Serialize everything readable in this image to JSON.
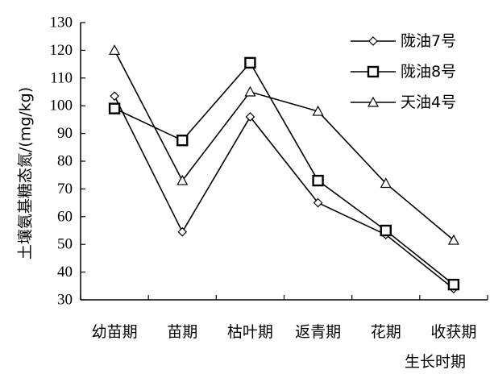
{
  "chart_data": {
    "type": "line",
    "xlabel": "生长时期",
    "ylabel": "土壤氨基糖态氮/(mg/kg)",
    "ylim": [
      30,
      130
    ],
    "yticks": [
      "30",
      "40",
      "50",
      "60",
      "70",
      "80",
      "90",
      "100",
      "110",
      "120",
      "130"
    ],
    "categories": [
      "幼苗期",
      "苗期",
      "枯叶期",
      "返青期",
      "花期",
      "收获期"
    ],
    "grid": false,
    "legend_position": "top-right",
    "series": [
      {
        "name": "陇油7号",
        "marker": "diamond",
        "values": [
          103.5,
          54.5,
          96,
          65,
          53.5,
          34
        ]
      },
      {
        "name": "陇油8号",
        "marker": "square",
        "values": [
          99,
          87.5,
          115.5,
          73,
          55,
          35.5
        ]
      },
      {
        "name": "天油4号",
        "marker": "triangle",
        "values": [
          120,
          73,
          105,
          98,
          72,
          51.5
        ]
      }
    ]
  }
}
